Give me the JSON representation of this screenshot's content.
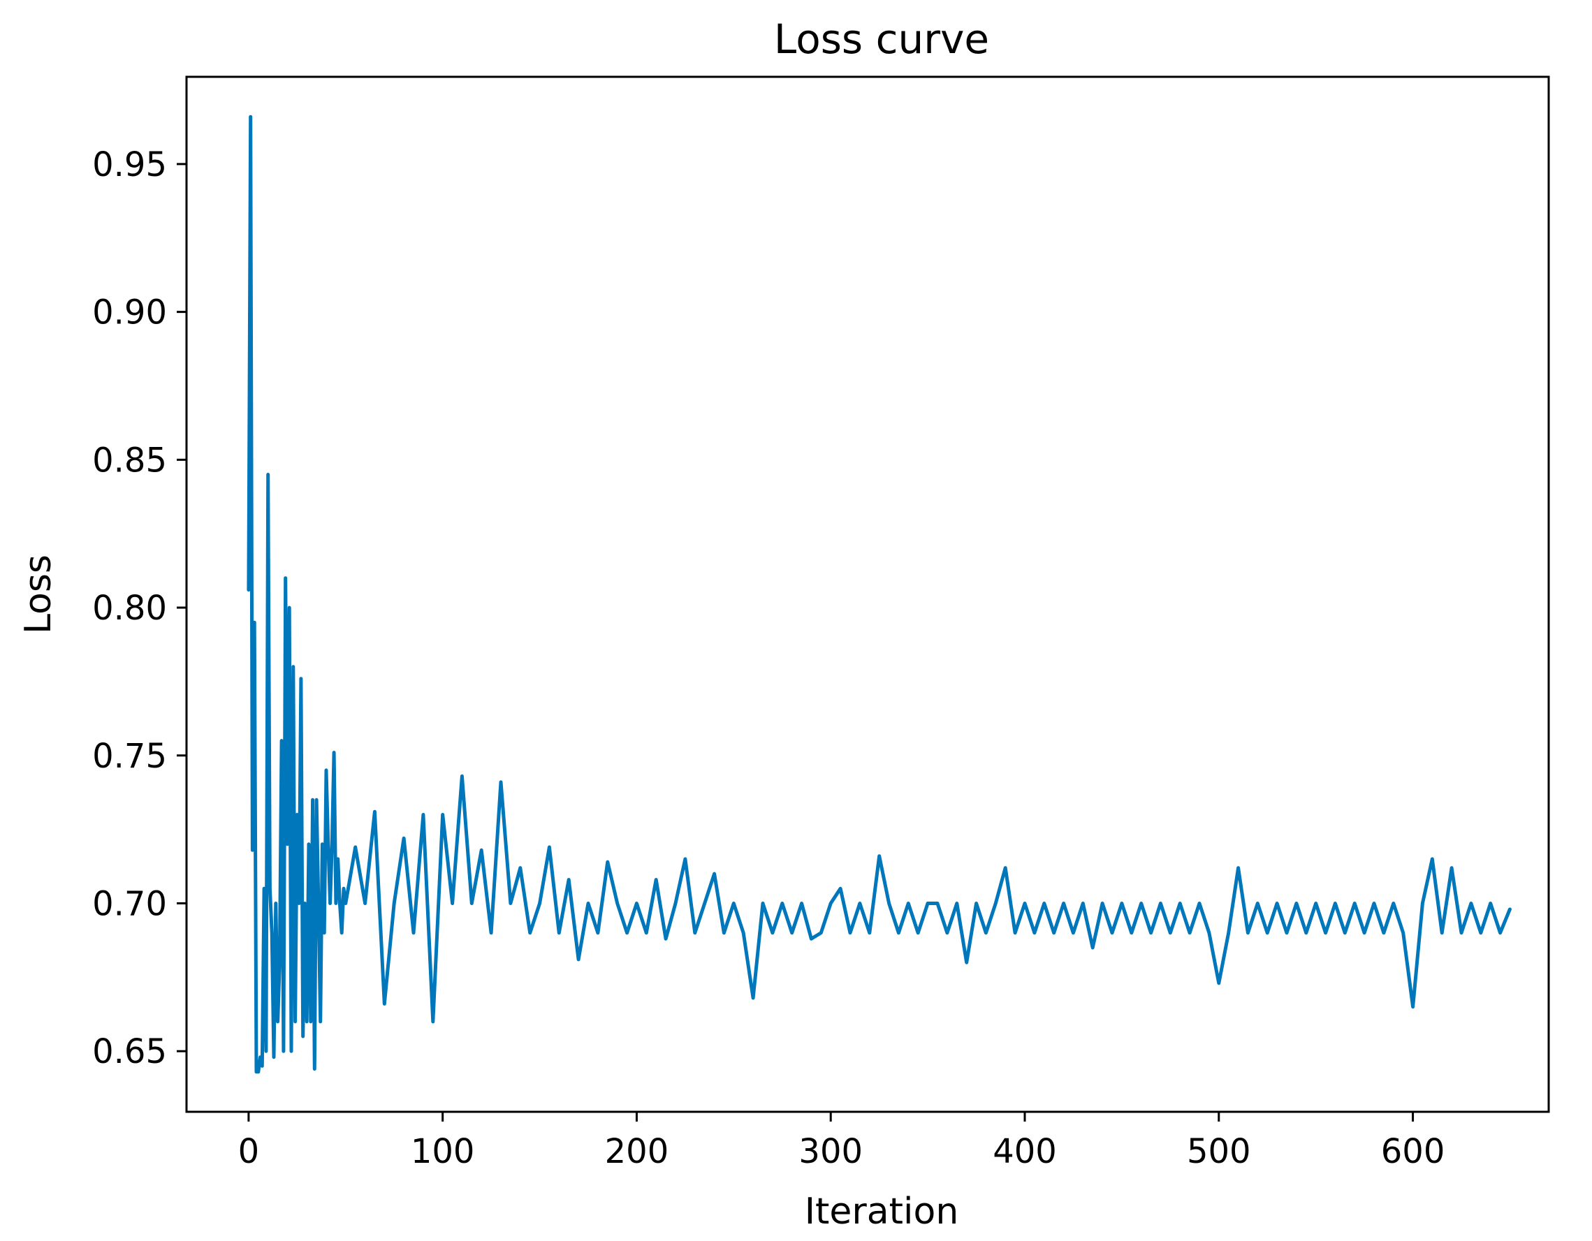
{
  "chart_data": {
    "type": "line",
    "title": "Loss curve",
    "xlabel": "Iteration",
    "ylabel": "Loss",
    "xlim": [
      -32,
      670
    ],
    "ylim": [
      0.6295,
      0.9795
    ],
    "xticks": [
      0,
      100,
      200,
      300,
      400,
      500,
      600
    ],
    "xtick_labels": [
      "0",
      "100",
      "200",
      "300",
      "400",
      "500",
      "600"
    ],
    "yticks": [
      0.65,
      0.7,
      0.75,
      0.8,
      0.85,
      0.9,
      0.95
    ],
    "ytick_labels": [
      "0.65",
      "0.70",
      "0.75",
      "0.80",
      "0.85",
      "0.90",
      "0.95"
    ],
    "grid": false,
    "legend": "none",
    "series": [
      {
        "color": "#0077bb",
        "x": [
          0,
          1,
          2,
          3,
          4,
          5,
          6,
          7,
          8,
          9,
          10,
          11,
          12,
          13,
          14,
          15,
          16,
          17,
          18,
          19,
          20,
          21,
          22,
          23,
          24,
          25,
          26,
          27,
          28,
          29,
          30,
          31,
          32,
          33,
          34,
          35,
          36,
          37,
          38,
          39,
          40,
          41,
          42,
          43,
          44,
          45,
          46,
          47,
          48,
          49,
          50,
          55,
          60,
          65,
          70,
          75,
          80,
          85,
          90,
          95,
          100,
          105,
          110,
          115,
          120,
          125,
          130,
          135,
          140,
          145,
          150,
          155,
          160,
          165,
          170,
          175,
          180,
          185,
          190,
          195,
          200,
          205,
          210,
          215,
          220,
          225,
          230,
          235,
          240,
          245,
          250,
          255,
          260,
          265,
          270,
          275,
          280,
          285,
          290,
          295,
          300,
          305,
          310,
          315,
          320,
          325,
          330,
          335,
          340,
          345,
          350,
          355,
          360,
          365,
          370,
          375,
          380,
          385,
          390,
          395,
          400,
          405,
          410,
          415,
          420,
          425,
          430,
          435,
          440,
          445,
          450,
          455,
          460,
          465,
          470,
          475,
          480,
          485,
          490,
          495,
          500,
          505,
          510,
          515,
          520,
          525,
          530,
          535,
          540,
          545,
          550,
          555,
          560,
          565,
          570,
          575,
          580,
          585,
          590,
          595,
          600,
          605,
          610,
          615,
          620,
          625,
          630,
          635,
          640,
          645,
          650
        ],
        "y": [
          0.806,
          0.966,
          0.718,
          0.795,
          0.643,
          0.643,
          0.648,
          0.645,
          0.705,
          0.65,
          0.845,
          0.705,
          0.69,
          0.648,
          0.7,
          0.66,
          0.68,
          0.755,
          0.65,
          0.81,
          0.72,
          0.8,
          0.65,
          0.78,
          0.66,
          0.73,
          0.7,
          0.776,
          0.655,
          0.7,
          0.66,
          0.72,
          0.66,
          0.735,
          0.644,
          0.735,
          0.7,
          0.66,
          0.72,
          0.69,
          0.745,
          0.72,
          0.7,
          0.72,
          0.751,
          0.7,
          0.715,
          0.7,
          0.69,
          0.705,
          0.7,
          0.719,
          0.7,
          0.731,
          0.666,
          0.7,
          0.722,
          0.69,
          0.73,
          0.66,
          0.73,
          0.7,
          0.743,
          0.7,
          0.718,
          0.69,
          0.741,
          0.7,
          0.712,
          0.69,
          0.7,
          0.719,
          0.69,
          0.708,
          0.681,
          0.7,
          0.69,
          0.714,
          0.7,
          0.69,
          0.7,
          0.69,
          0.708,
          0.688,
          0.7,
          0.715,
          0.69,
          0.7,
          0.71,
          0.69,
          0.7,
          0.69,
          0.668,
          0.7,
          0.69,
          0.7,
          0.69,
          0.7,
          0.688,
          0.69,
          0.7,
          0.705,
          0.69,
          0.7,
          0.69,
          0.716,
          0.7,
          0.69,
          0.7,
          0.69,
          0.7,
          0.7,
          0.69,
          0.7,
          0.68,
          0.7,
          0.69,
          0.7,
          0.712,
          0.69,
          0.7,
          0.69,
          0.7,
          0.69,
          0.7,
          0.69,
          0.7,
          0.685,
          0.7,
          0.69,
          0.7,
          0.69,
          0.7,
          0.69,
          0.7,
          0.69,
          0.7,
          0.69,
          0.7,
          0.69,
          0.673,
          0.69,
          0.712,
          0.69,
          0.7,
          0.69,
          0.7,
          0.69,
          0.7,
          0.69,
          0.7,
          0.69,
          0.7,
          0.69,
          0.7,
          0.69,
          0.7,
          0.69,
          0.7,
          0.69,
          0.665,
          0.7,
          0.715,
          0.69,
          0.712,
          0.69,
          0.7,
          0.69,
          0.7,
          0.69,
          0.698
        ]
      }
    ]
  }
}
